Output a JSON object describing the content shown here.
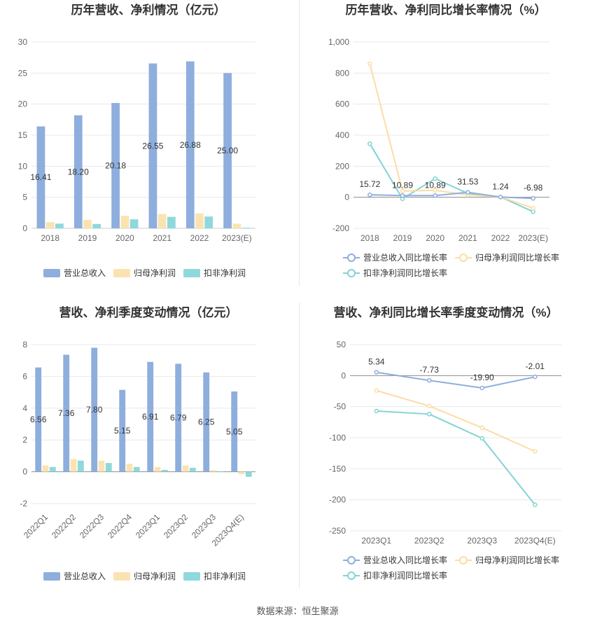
{
  "colors": {
    "revenue": "#8eaedd",
    "netprofit": "#fbe3b1",
    "deducted": "#8fd8dc",
    "revenue_line": "#8eaedd",
    "netprofit_line": "#fcdda4",
    "deducted_line": "#84d3d4",
    "grid": "#e8e8e8",
    "zero": "#8c8c8c"
  },
  "source_text": "数据来源：恒生聚源",
  "chart_data": [
    {
      "id": "annual-bar",
      "type": "bar",
      "title": "历年营收、净利情况（亿元）",
      "categories": [
        "2018",
        "2019",
        "2020",
        "2021",
        "2022",
        "2023(E)"
      ],
      "ylim": [
        0,
        30
      ],
      "yticks": [
        0,
        5,
        10,
        15,
        20,
        25,
        30
      ],
      "grid": true,
      "legend_position": "bottom",
      "series": [
        {
          "name": "营业总收入",
          "key": "revenue",
          "values": [
            16.41,
            18.2,
            20.18,
            26.55,
            26.88,
            25.0
          ],
          "labels": [
            "16.41",
            "18.20",
            "20.18",
            "26.55",
            "26.88",
            "25.00"
          ]
        },
        {
          "name": "归母净利润",
          "key": "netprofit",
          "values": [
            1.0,
            1.35,
            2.0,
            2.3,
            2.4,
            0.75
          ]
        },
        {
          "name": "扣非净利润",
          "key": "deducted",
          "values": [
            0.75,
            0.7,
            1.45,
            1.85,
            1.9,
            0.1
          ]
        }
      ]
    },
    {
      "id": "annual-line",
      "type": "line",
      "title": "历年营收、净利同比增长率情况（%）",
      "categories": [
        "2018",
        "2019",
        "2020",
        "2021",
        "2022",
        "2023(E)"
      ],
      "ylim": [
        -200,
        1000
      ],
      "yticks": [
        -200,
        0,
        200,
        400,
        600,
        800,
        1000
      ],
      "ytick_labels": [
        "-200",
        "0",
        "200",
        "400",
        "600",
        "800",
        "1,000"
      ],
      "grid": true,
      "legend_position": "bottom",
      "series": [
        {
          "name": "营业总收入同比增长率",
          "key": "revenue_line",
          "values": [
            15.72,
            10.89,
            10.89,
            31.53,
            1.24,
            -6.98
          ],
          "labels": [
            "15.72",
            "10.89",
            "10.89",
            "31.53",
            "1.24",
            "-6.98"
          ]
        },
        {
          "name": "归母净利润同比增长率",
          "key": "netprofit_line",
          "values": [
            860,
            40,
            45,
            15,
            2,
            -70
          ]
        },
        {
          "name": "扣非净利润同比增长率",
          "key": "deducted_line",
          "values": [
            345,
            -10,
            120,
            25,
            2,
            -93
          ]
        }
      ]
    },
    {
      "id": "quarter-bar",
      "type": "bar",
      "title": "营收、净利季度变动情况（亿元）",
      "categories": [
        "2022Q1",
        "2022Q2",
        "2022Q3",
        "2022Q4",
        "2023Q1",
        "2023Q2",
        "2023Q3",
        "2023Q4(E)"
      ],
      "ylim": [
        -2,
        8
      ],
      "yticks": [
        -2,
        0,
        2,
        4,
        6,
        8
      ],
      "grid": true,
      "legend_position": "bottom",
      "series": [
        {
          "name": "营业总收入",
          "key": "revenue",
          "values": [
            6.56,
            7.36,
            7.8,
            5.15,
            6.91,
            6.79,
            6.25,
            5.05
          ],
          "labels": [
            "6.56",
            "7.36",
            "7.80",
            "5.15",
            "6.91",
            "6.79",
            "6.25",
            "5.05"
          ]
        },
        {
          "name": "归母净利润",
          "key": "netprofit",
          "values": [
            0.4,
            0.8,
            0.7,
            0.5,
            0.3,
            0.4,
            0.1,
            -0.15
          ]
        },
        {
          "name": "扣非净利润",
          "key": "deducted",
          "values": [
            0.3,
            0.7,
            0.55,
            0.3,
            0.12,
            0.25,
            0.02,
            -0.32
          ]
        }
      ]
    },
    {
      "id": "quarter-line",
      "type": "line",
      "title": "营收、净利同比增长率季度变动情况（%）",
      "categories": [
        "2023Q1",
        "2023Q2",
        "2023Q3",
        "2023Q4(E)"
      ],
      "ylim": [
        -250,
        50
      ],
      "yticks": [
        -250,
        -200,
        -150,
        -100,
        -50,
        0,
        50
      ],
      "grid": true,
      "legend_position": "bottom",
      "series": [
        {
          "name": "营业总收入同比增长率",
          "key": "revenue_line",
          "values": [
            5.34,
            -7.73,
            -19.9,
            -2.01
          ],
          "labels": [
            "5.34",
            "-7.73",
            "-19.90",
            "-2.01"
          ]
        },
        {
          "name": "归母净利润同比增长率",
          "key": "netprofit_line",
          "values": [
            -24,
            -49,
            -84,
            -122
          ]
        },
        {
          "name": "扣非净利润同比增长率",
          "key": "deducted_line",
          "values": [
            -57,
            -62,
            -101,
            -208
          ]
        }
      ]
    }
  ]
}
